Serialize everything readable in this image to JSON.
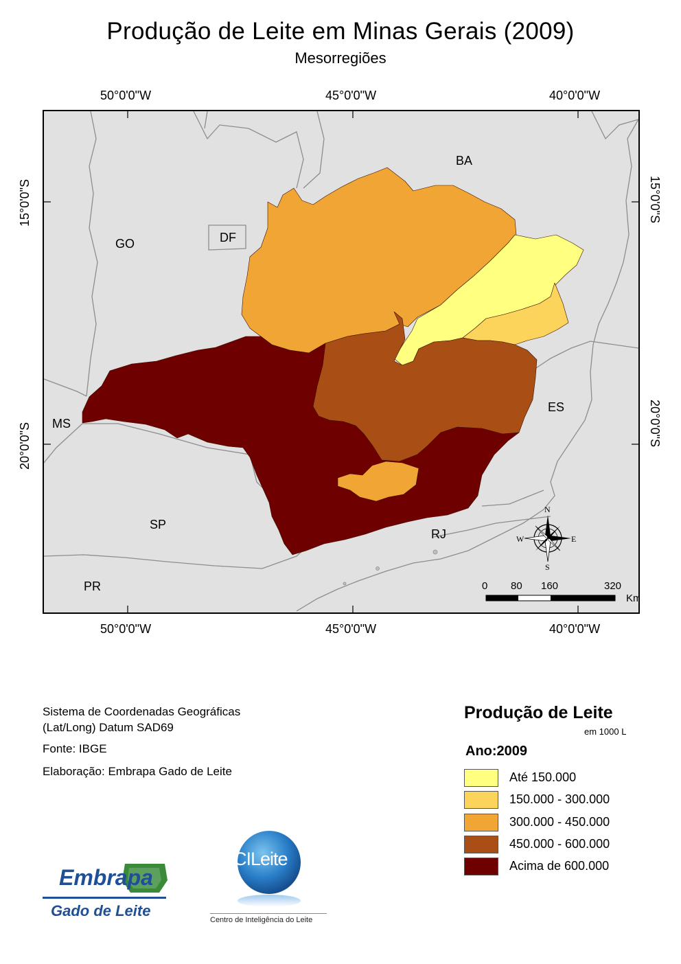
{
  "header": {
    "title": "Produção de Leite em Minas Gerais (2009)",
    "subtitle": "Mesorregiões"
  },
  "graticule": {
    "longitudes": [
      "50°0'0\"W",
      "45°0'0\"W",
      "40°0'0\"W"
    ],
    "latitudes": [
      "15°0'0\"S",
      "20°0'0\"S"
    ]
  },
  "map": {
    "state_labels": {
      "ba": "BA",
      "go": "GO",
      "df": "DF",
      "ms": "MS",
      "sp": "SP",
      "es": "ES",
      "rj": "RJ",
      "pr": "PR"
    },
    "north_arrow": {
      "n": "N",
      "s": "S",
      "e": "E",
      "w": "W"
    },
    "scale_bar": {
      "ticks": [
        "0",
        "80",
        "160",
        "320"
      ],
      "unit": "Km"
    },
    "colors": {
      "background": "#e1e1e1",
      "class_1": "#ffff80",
      "class_2": "#fcd45c",
      "class_3": "#f0a535",
      "class_4": "#a94e14",
      "class_5": "#6e0000"
    }
  },
  "info": {
    "crs_line1": "Sistema de Coordenadas Geográficas",
    "crs_line2": "(Lat/Long) Datum SAD69",
    "source": "Fonte: IBGE",
    "author": "Elaboração: Embrapa Gado de Leite"
  },
  "legend": {
    "title": "Produção de Leite",
    "unit": "em 1000 L",
    "year_label": "Ano:2009",
    "classes": [
      {
        "label": "Até 150.000",
        "color": "#ffff80"
      },
      {
        "label": "150.000 - 300.000",
        "color": "#fcd45c"
      },
      {
        "label": "300.000 - 450.000",
        "color": "#f0a535"
      },
      {
        "label": "450.000 - 600.000",
        "color": "#a94e14"
      },
      {
        "label": "Acima de 600.000",
        "color": "#6e0000"
      }
    ]
  },
  "logos": {
    "embrapa": {
      "word": "Embrapa",
      "sub": "Gado de Leite"
    },
    "cileite": {
      "word": "CILeite",
      "sub": "Centro de Inteligência do Leite"
    }
  }
}
